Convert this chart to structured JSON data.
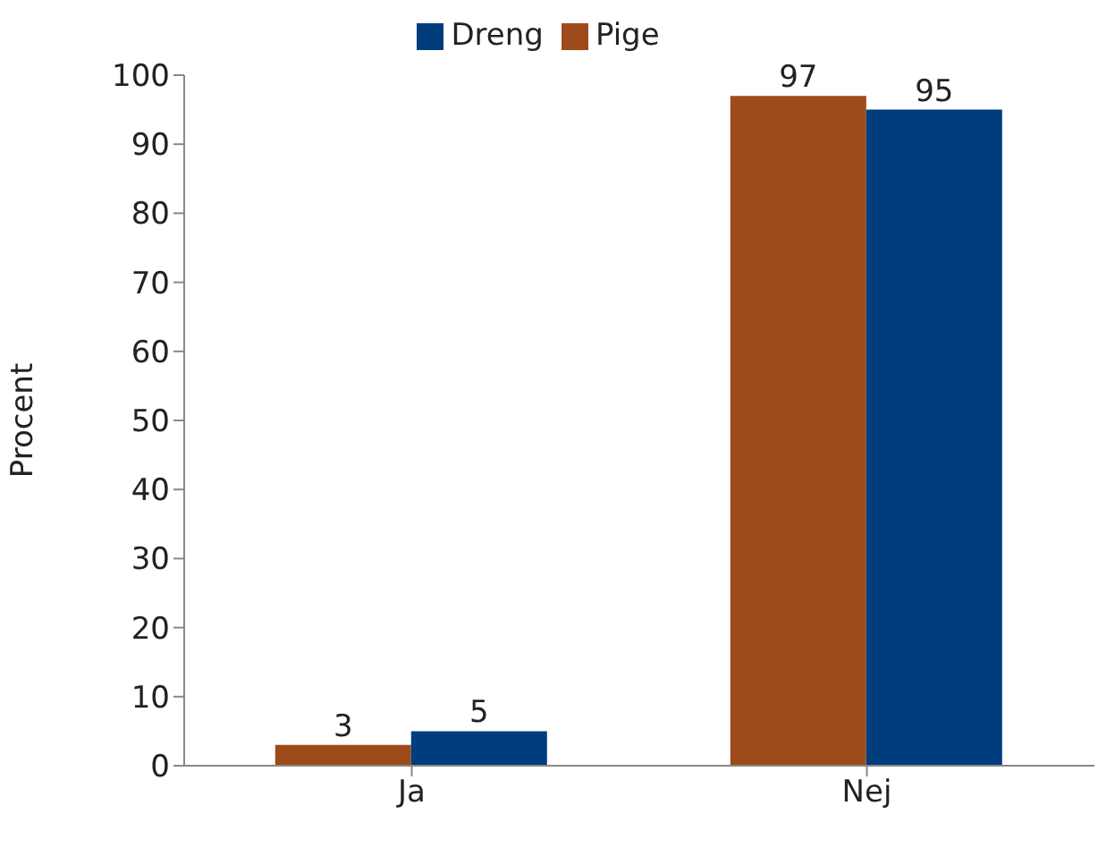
{
  "chart_data": {
    "type": "bar",
    "categories": [
      "Ja",
      "Nej"
    ],
    "ylabel": "Procent",
    "series": [
      {
        "name": "Pige",
        "color": "#9e4b1b",
        "values": [
          3,
          97
        ]
      },
      {
        "name": "Dreng",
        "color": "#003d7d",
        "values": [
          5,
          95
        ]
      }
    ],
    "ylim": [
      0,
      100
    ],
    "yticks": [
      0,
      10,
      20,
      30,
      40,
      50,
      60,
      70,
      80,
      90,
      100
    ],
    "grid": false,
    "legend": "top",
    "data_labels": true
  }
}
